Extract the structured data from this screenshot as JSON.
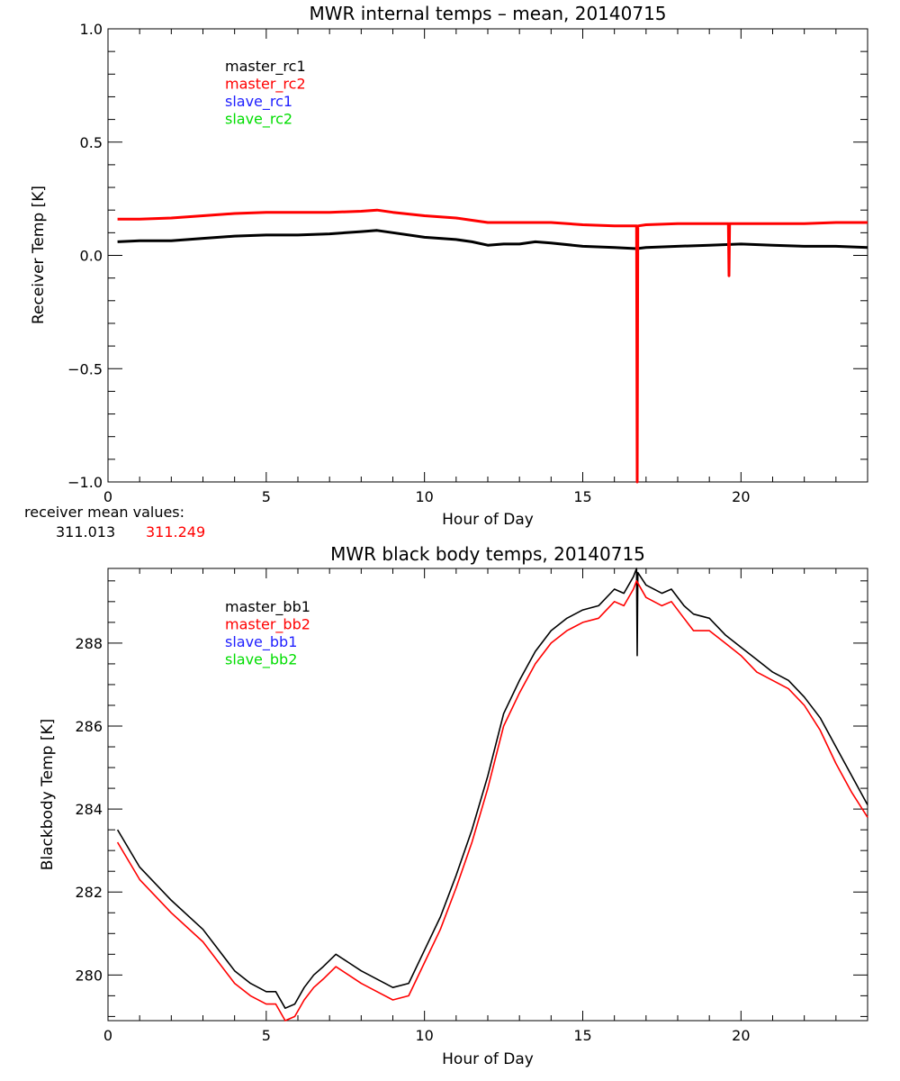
{
  "colors": {
    "black": "#000000",
    "red": "#ff0000",
    "blue": "#2020ff",
    "green": "#00dd00"
  },
  "chart_data": [
    {
      "type": "line",
      "title": "MWR internal temps – mean, 20140715",
      "xlabel": "Hour of Day",
      "ylabel": "Receiver Temp [K]",
      "xlim": [
        0,
        24
      ],
      "ylim": [
        -1.0,
        1.0
      ],
      "xticks": [
        0,
        5,
        10,
        15,
        20
      ],
      "xtick_labels": [
        "0",
        "5",
        "10",
        "15",
        "20"
      ],
      "yticks": [
        -1.0,
        -0.5,
        0.0,
        0.5,
        1.0
      ],
      "ytick_labels": [
        "−1.0",
        "−0.5",
        "0.0",
        "0.5",
        "1.0"
      ],
      "legend": [
        "master_rc1",
        "master_rc2",
        "slave_rc1",
        "slave_rc2"
      ],
      "legend_colors": [
        "black",
        "red",
        "blue",
        "green"
      ],
      "series": [
        {
          "name": "master_rc1",
          "color": "black",
          "x": [
            0.3,
            1,
            2,
            3,
            4,
            5,
            6,
            7,
            8,
            8.5,
            9,
            10,
            11,
            11.5,
            12,
            12.5,
            13,
            13.5,
            14,
            15,
            16,
            16.7,
            17,
            18,
            19,
            20,
            21,
            22,
            23,
            24
          ],
          "y": [
            0.06,
            0.065,
            0.065,
            0.075,
            0.085,
            0.09,
            0.09,
            0.095,
            0.105,
            0.11,
            0.1,
            0.08,
            0.07,
            0.06,
            0.045,
            0.05,
            0.05,
            0.06,
            0.055,
            0.04,
            0.035,
            0.03,
            0.035,
            0.04,
            0.045,
            0.05,
            0.045,
            0.04,
            0.04,
            0.035
          ]
        },
        {
          "name": "master_rc2",
          "color": "red",
          "x": [
            0.3,
            1,
            2,
            3,
            4,
            5,
            6,
            7,
            8,
            8.5,
            9,
            10,
            11,
            11.5,
            12,
            13,
            14,
            15,
            16,
            16.7,
            16.72,
            16.74,
            17,
            18,
            19,
            19.6,
            19.62,
            19.64,
            20,
            21,
            22,
            23,
            24
          ],
          "y": [
            0.16,
            0.16,
            0.165,
            0.175,
            0.185,
            0.19,
            0.19,
            0.19,
            0.195,
            0.2,
            0.19,
            0.175,
            0.165,
            0.155,
            0.145,
            0.145,
            0.145,
            0.135,
            0.13,
            0.13,
            -1.0,
            0.13,
            0.135,
            0.14,
            0.14,
            0.14,
            -0.09,
            0.14,
            0.14,
            0.14,
            0.14,
            0.145,
            0.145
          ]
        }
      ],
      "annotation": {
        "label": "receiver mean values:",
        "values": [
          "311.013",
          "311.249"
        ],
        "value_colors": [
          "black",
          "red"
        ]
      }
    },
    {
      "type": "line",
      "title": "MWR black body temps, 20140715",
      "xlabel": "Hour of Day",
      "ylabel": "Blackbody Temp [K]",
      "xlim": [
        0,
        24
      ],
      "ylim": [
        278.9,
        289.8
      ],
      "xticks": [
        0,
        5,
        10,
        15,
        20
      ],
      "xtick_labels": [
        "0",
        "5",
        "10",
        "15",
        "20"
      ],
      "yticks": [
        280,
        282,
        284,
        286,
        288
      ],
      "ytick_labels": [
        "280",
        "282",
        "284",
        "286",
        "288"
      ],
      "legend": [
        "master_bb1",
        "master_bb2",
        "slave_bb1",
        "slave_bb2"
      ],
      "legend_colors": [
        "black",
        "red",
        "blue",
        "green"
      ],
      "series": [
        {
          "name": "master_bb1",
          "color": "black",
          "x": [
            0.3,
            1,
            2,
            3,
            4,
            4.5,
            5,
            5.3,
            5.6,
            5.9,
            6.2,
            6.5,
            6.8,
            7.2,
            7.6,
            8,
            8.5,
            9,
            9.5,
            10,
            10.5,
            11,
            11.5,
            12,
            12.5,
            13,
            13.5,
            14,
            14.5,
            15,
            15.5,
            16,
            16.3,
            16.6,
            16.7,
            16.72,
            16.74,
            17,
            17.5,
            17.8,
            18.2,
            18.5,
            19,
            19.5,
            20,
            20.5,
            21,
            21.5,
            22,
            22.5,
            23,
            23.5,
            24
          ],
          "y": [
            283.5,
            282.6,
            281.8,
            281.1,
            280.1,
            279.8,
            279.6,
            279.6,
            279.2,
            279.3,
            279.7,
            280.0,
            280.2,
            280.5,
            280.3,
            280.1,
            279.9,
            279.7,
            279.8,
            280.6,
            281.4,
            282.4,
            283.5,
            284.8,
            286.3,
            287.1,
            287.8,
            288.3,
            288.6,
            288.8,
            288.9,
            289.3,
            289.2,
            289.6,
            289.8,
            287.7,
            289.7,
            289.4,
            289.2,
            289.3,
            288.9,
            288.7,
            288.6,
            288.2,
            287.9,
            287.6,
            287.3,
            287.1,
            286.7,
            286.2,
            285.5,
            284.8,
            284.1
          ]
        },
        {
          "name": "master_bb2",
          "color": "red",
          "x": [
            0.3,
            1,
            2,
            3,
            4,
            4.5,
            5,
            5.3,
            5.6,
            5.9,
            6.2,
            6.5,
            6.8,
            7.2,
            7.6,
            8,
            8.5,
            9,
            9.5,
            10,
            10.5,
            11,
            11.5,
            12,
            12.5,
            13,
            13.5,
            14,
            14.5,
            15,
            15.5,
            16,
            16.3,
            16.6,
            16.7,
            17,
            17.5,
            17.8,
            18.2,
            18.5,
            19,
            19.5,
            20,
            20.5,
            21,
            21.5,
            22,
            22.5,
            23,
            23.5,
            24
          ],
          "y": [
            283.2,
            282.3,
            281.5,
            280.8,
            279.8,
            279.5,
            279.3,
            279.3,
            278.9,
            279.0,
            279.4,
            279.7,
            279.9,
            280.2,
            280.0,
            279.8,
            279.6,
            279.4,
            279.5,
            280.3,
            281.1,
            282.1,
            283.2,
            284.5,
            286.0,
            286.8,
            287.5,
            288.0,
            288.3,
            288.5,
            288.6,
            289.0,
            288.9,
            289.3,
            289.5,
            289.1,
            288.9,
            289.0,
            288.6,
            288.3,
            288.3,
            288.0,
            287.7,
            287.3,
            287.1,
            286.9,
            286.5,
            285.9,
            285.1,
            284.4,
            283.8
          ]
        }
      ]
    }
  ]
}
